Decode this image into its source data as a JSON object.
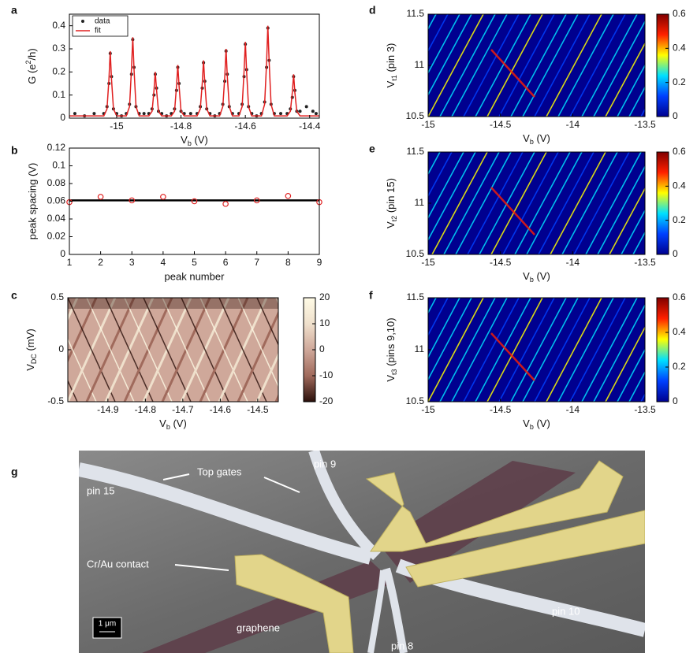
{
  "chart_data": [
    {
      "panel": "a",
      "type": "line",
      "xlabel": [
        "V",
        "b",
        " (V)"
      ],
      "ylabel": [
        "G (e",
        "2",
        "/h)"
      ],
      "xlim": [
        -15.147,
        -14.37
      ],
      "ylim": [
        0,
        0.45
      ],
      "xticks": [
        -15,
        -14.8,
        -14.6,
        -14.4
      ],
      "yticks": [
        0,
        0.1,
        0.2,
        0.3,
        0.4
      ],
      "legend": "upper left",
      "series": [
        {
          "name": "data",
          "color": "#222222",
          "style": "markers",
          "x": [
            -15.13,
            -15.1,
            -15.07,
            -15.04,
            -15.03,
            -15.024,
            -15.02,
            -15.016,
            -15.01,
            -15.0,
            -14.985,
            -14.97,
            -14.96,
            -14.954,
            -14.95,
            -14.946,
            -14.94,
            -14.93,
            -14.915,
            -14.9,
            -14.89,
            -14.884,
            -14.88,
            -14.876,
            -14.87,
            -14.86,
            -14.845,
            -14.83,
            -14.82,
            -14.814,
            -14.81,
            -14.806,
            -14.8,
            -14.79,
            -14.77,
            -14.75,
            -14.74,
            -14.734,
            -14.73,
            -14.726,
            -14.72,
            -14.71,
            -14.695,
            -14.68,
            -14.67,
            -14.664,
            -14.66,
            -14.656,
            -14.65,
            -14.64,
            -14.62,
            -14.61,
            -14.604,
            -14.6,
            -14.596,
            -14.59,
            -14.58,
            -14.565,
            -14.55,
            -14.54,
            -14.534,
            -14.53,
            -14.526,
            -14.52,
            -14.51,
            -14.49,
            -14.47,
            -14.46,
            -14.454,
            -14.45,
            -14.446,
            -14.44,
            -14.43,
            -14.41,
            -14.39,
            -14.38
          ],
          "values": [
            0.02,
            0.01,
            0.02,
            0.02,
            0.05,
            0.15,
            0.28,
            0.18,
            0.04,
            0.02,
            0.01,
            0.02,
            0.06,
            0.19,
            0.34,
            0.22,
            0.05,
            0.02,
            0.02,
            0.02,
            0.04,
            0.1,
            0.19,
            0.13,
            0.03,
            0.02,
            0.01,
            0.02,
            0.04,
            0.12,
            0.22,
            0.15,
            0.03,
            0.02,
            0.02,
            0.02,
            0.05,
            0.13,
            0.24,
            0.16,
            0.04,
            0.02,
            0.01,
            0.02,
            0.06,
            0.16,
            0.29,
            0.19,
            0.05,
            0.02,
            0.02,
            0.06,
            0.18,
            0.32,
            0.21,
            0.05,
            0.02,
            0.01,
            0.02,
            0.07,
            0.22,
            0.39,
            0.25,
            0.06,
            0.02,
            0.02,
            0.02,
            0.04,
            0.09,
            0.18,
            0.12,
            0.03,
            0.03,
            0.05,
            0.03,
            0.02
          ]
        },
        {
          "name": "fit",
          "color": "#e02020",
          "style": "line",
          "x": [
            -15.147,
            -15.04,
            -15.03,
            -15.024,
            -15.02,
            -15.016,
            -15.01,
            -15.0,
            -14.97,
            -14.96,
            -14.954,
            -14.95,
            -14.946,
            -14.94,
            -14.93,
            -14.9,
            -14.89,
            -14.884,
            -14.88,
            -14.876,
            -14.87,
            -14.86,
            -14.83,
            -14.82,
            -14.814,
            -14.81,
            -14.806,
            -14.8,
            -14.79,
            -14.75,
            -14.74,
            -14.734,
            -14.73,
            -14.726,
            -14.72,
            -14.71,
            -14.68,
            -14.67,
            -14.664,
            -14.66,
            -14.656,
            -14.65,
            -14.64,
            -14.62,
            -14.61,
            -14.604,
            -14.6,
            -14.596,
            -14.59,
            -14.58,
            -14.55,
            -14.54,
            -14.534,
            -14.53,
            -14.526,
            -14.52,
            -14.51,
            -14.47,
            -14.46,
            -14.454,
            -14.45,
            -14.446,
            -14.44,
            -14.43,
            -14.37
          ],
          "values": [
            0.01,
            0.01,
            0.04,
            0.17,
            0.29,
            0.17,
            0.04,
            0.01,
            0.01,
            0.05,
            0.21,
            0.35,
            0.21,
            0.05,
            0.01,
            0.01,
            0.03,
            0.12,
            0.2,
            0.12,
            0.03,
            0.01,
            0.01,
            0.03,
            0.14,
            0.23,
            0.14,
            0.03,
            0.01,
            0.01,
            0.04,
            0.15,
            0.25,
            0.15,
            0.04,
            0.01,
            0.01,
            0.05,
            0.18,
            0.3,
            0.18,
            0.05,
            0.01,
            0.01,
            0.05,
            0.2,
            0.33,
            0.2,
            0.05,
            0.01,
            0.01,
            0.06,
            0.24,
            0.4,
            0.24,
            0.06,
            0.01,
            0.01,
            0.03,
            0.11,
            0.19,
            0.11,
            0.03,
            0.01,
            0.01
          ]
        }
      ]
    },
    {
      "panel": "b",
      "type": "scatter",
      "xlabel": "peak number",
      "ylabel": "peak spacing (V)",
      "xlim": [
        1,
        9
      ],
      "ylim": [
        0,
        0.12
      ],
      "xticks": [
        1,
        2,
        3,
        4,
        5,
        6,
        7,
        8,
        9
      ],
      "yticks": [
        0,
        0.02,
        0.04,
        0.06,
        0.08,
        0.1,
        0.12
      ],
      "x": [
        1,
        2,
        3,
        4,
        5,
        6,
        7,
        8,
        9
      ],
      "values": [
        0.059,
        0.065,
        0.061,
        0.065,
        0.06,
        0.057,
        0.061,
        0.066,
        0.059
      ],
      "color": "#e02020",
      "hline": 0.061,
      "hline_color": "#000000"
    },
    {
      "panel": "c",
      "type": "heatmap",
      "xlabel": [
        "V",
        "b",
        " (V)"
      ],
      "ylabel": [
        "V",
        "DC",
        " (mV)"
      ],
      "xlim": [
        -15.007,
        -14.445
      ],
      "ylim": [
        -0.5,
        0.5
      ],
      "xticks": [
        -14.9,
        -14.8,
        -14.7,
        -14.6,
        -14.5
      ],
      "yticks": [
        -0.5,
        0,
        0.5
      ],
      "clim": [
        -20,
        20
      ],
      "cticks": [
        -20,
        -10,
        0,
        10,
        20
      ],
      "colormap": [
        "#2a0f0a",
        "#a06a5c",
        "#cfa89a",
        "#efe0cc",
        "#fffbe6"
      ]
    },
    {
      "panel": "d",
      "type": "heatmap",
      "xlabel": [
        "V",
        "b",
        " (V)"
      ],
      "ylabel": [
        "V",
        "t1",
        " (pin 3)"
      ],
      "xlim": [
        -15,
        -13.5
      ],
      "ylim": [
        10.5,
        11.5
      ],
      "xticks": [
        -15,
        -14.5,
        -14,
        -13.5
      ],
      "yticks": [
        10.5,
        11,
        11.5
      ],
      "clim": [
        0,
        0.6
      ],
      "cticks": [
        0,
        0.2,
        0.4,
        0.6
      ],
      "colormap": [
        "#00008f",
        "#0040ff",
        "#00e0ff",
        "#ffff00",
        "#ff2000",
        "#800000"
      ]
    },
    {
      "panel": "e",
      "type": "heatmap",
      "xlabel": [
        "V",
        "b",
        " (V)"
      ],
      "ylabel": [
        "V",
        "t2",
        " (pin 15)"
      ],
      "xlim": [
        -15,
        -13.5
      ],
      "ylim": [
        10.5,
        11.5
      ],
      "xticks": [
        -15,
        -14.5,
        -14,
        -13.5
      ],
      "yticks": [
        10.5,
        11,
        11.5
      ],
      "clim": [
        0,
        0.6
      ],
      "cticks": [
        0,
        0.2,
        0.4,
        0.6
      ],
      "colormap": [
        "#00008f",
        "#0040ff",
        "#00e0ff",
        "#ffff00",
        "#ff2000",
        "#800000"
      ]
    },
    {
      "panel": "f",
      "type": "heatmap",
      "xlabel": [
        "V",
        "b",
        " (V)"
      ],
      "ylabel": [
        "V",
        "t3",
        " (pins 9,10)"
      ],
      "xlim": [
        -15,
        -13.5
      ],
      "ylim": [
        10.5,
        11.5
      ],
      "xticks": [
        -15,
        -14.5,
        -14,
        -13.5
      ],
      "yticks": [
        10.5,
        11,
        11.5
      ],
      "clim": [
        0,
        0.6
      ],
      "cticks": [
        0,
        0.2,
        0.4,
        0.6
      ],
      "colormap": [
        "#00008f",
        "#0040ff",
        "#00e0ff",
        "#ffff00",
        "#ff2000",
        "#800000"
      ]
    }
  ],
  "image": {
    "panel": "g",
    "labels": {
      "top_gates": "Top gates",
      "pin15": "pin 15",
      "pin9": "pin 9",
      "contact": "Cr/Au contact",
      "pin10": "pin 10",
      "pin8": "pin 8",
      "graphene": "graphene",
      "scale": "1 μm"
    }
  }
}
